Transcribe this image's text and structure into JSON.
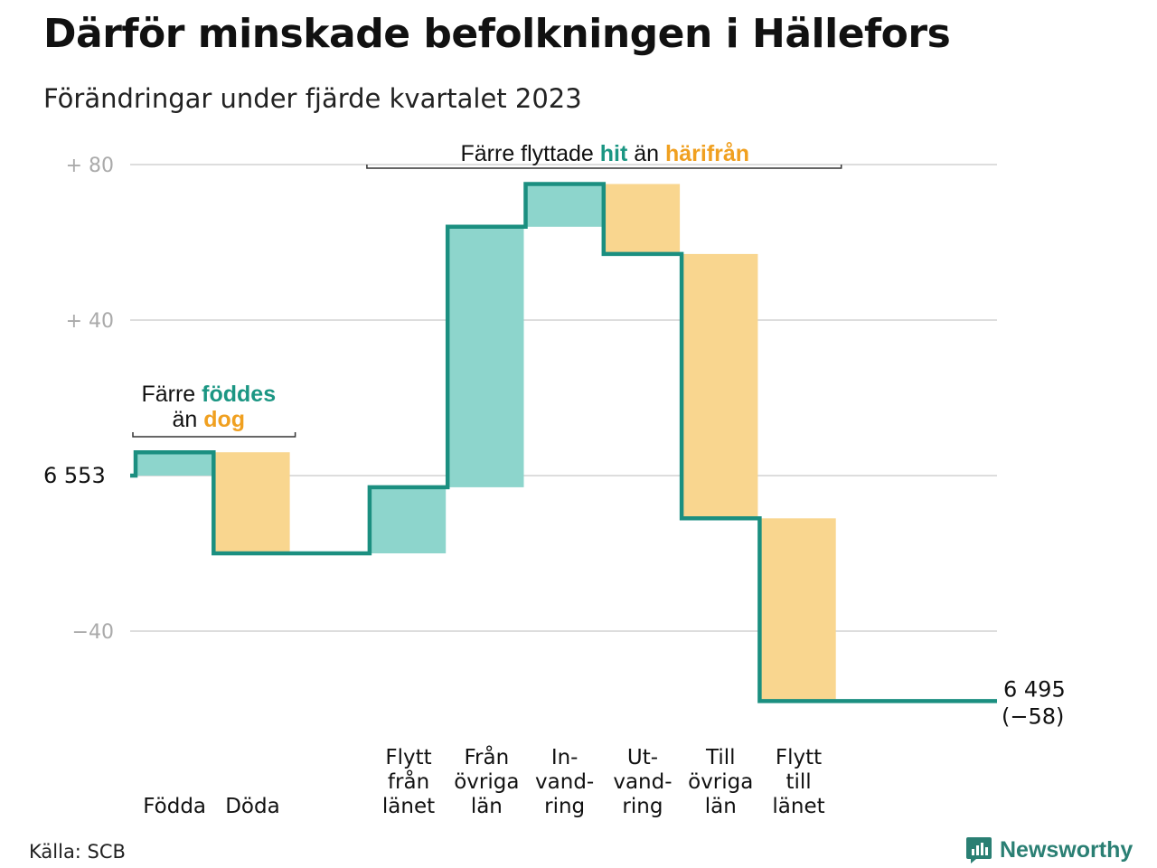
{
  "title": "Därför minskade befolkningen i Hällefors",
  "subtitle": "Förändringar under fjärde kvartalet 2023",
  "source": "Källa: SCB",
  "brand": "Newsworthy",
  "colors": {
    "inflow": "#8dd5cc",
    "outflow": "#f9d68f",
    "line": "#1b8f80",
    "teal_text": "#1b9683",
    "orange_text": "#f0a020",
    "grid": "#dddddd",
    "axis_text": "#aaaaaa"
  },
  "chart_data": {
    "type": "waterfall",
    "start": {
      "label": "6 553",
      "value": 6553
    },
    "end": {
      "label_line1": "6 495",
      "label_line2": "(−58)",
      "value": 6495,
      "change": -58
    },
    "y_axis": {
      "ylim": [
        -60,
        90
      ],
      "ticks": [
        {
          "value": 80,
          "label": "+  80"
        },
        {
          "value": 40,
          "label": "+  40"
        },
        {
          "value": 0,
          "label": ""
        },
        {
          "value": -40,
          "label": "−40"
        }
      ],
      "grid": true
    },
    "steps": [
      {
        "label_lines": [
          "Födda"
        ],
        "change": 6,
        "kind": "inflow"
      },
      {
        "label_lines": [
          "Döda"
        ],
        "change": -26,
        "kind": "outflow"
      },
      {
        "label_lines": [],
        "change": 0,
        "kind": "gap"
      },
      {
        "label_lines": [
          "Flytt",
          "från",
          "länet"
        ],
        "change": 17,
        "kind": "inflow"
      },
      {
        "label_lines": [
          "Från",
          "övriga",
          "län"
        ],
        "change": 67,
        "kind": "inflow"
      },
      {
        "label_lines": [
          "In-",
          "vand-",
          "ring"
        ],
        "change": 11,
        "kind": "inflow"
      },
      {
        "label_lines": [
          "Ut-",
          "vand-",
          "ring"
        ],
        "change": -18,
        "kind": "outflow"
      },
      {
        "label_lines": [
          "Till",
          "övriga",
          "län"
        ],
        "change": -68,
        "kind": "outflow"
      },
      {
        "label_lines": [
          "Flytt",
          "till",
          "länet"
        ],
        "change": -47,
        "kind": "outflow"
      }
    ],
    "annotations": [
      {
        "parts": [
          {
            "text": "Färre ",
            "style": "plain"
          },
          {
            "text": "föddes",
            "style": "teal"
          }
        ],
        "parts2": [
          {
            "text": "än ",
            "style": "plain"
          },
          {
            "text": "dog",
            "style": "orange"
          }
        ],
        "from_step": 0,
        "to_step": 1
      },
      {
        "parts": [
          {
            "text": "Färre flyttade ",
            "style": "plain"
          },
          {
            "text": "hit",
            "style": "teal"
          },
          {
            "text": " än ",
            "style": "plain"
          },
          {
            "text": "härifrån",
            "style": "orange"
          }
        ],
        "from_step": 3,
        "to_step": 8
      }
    ]
  }
}
